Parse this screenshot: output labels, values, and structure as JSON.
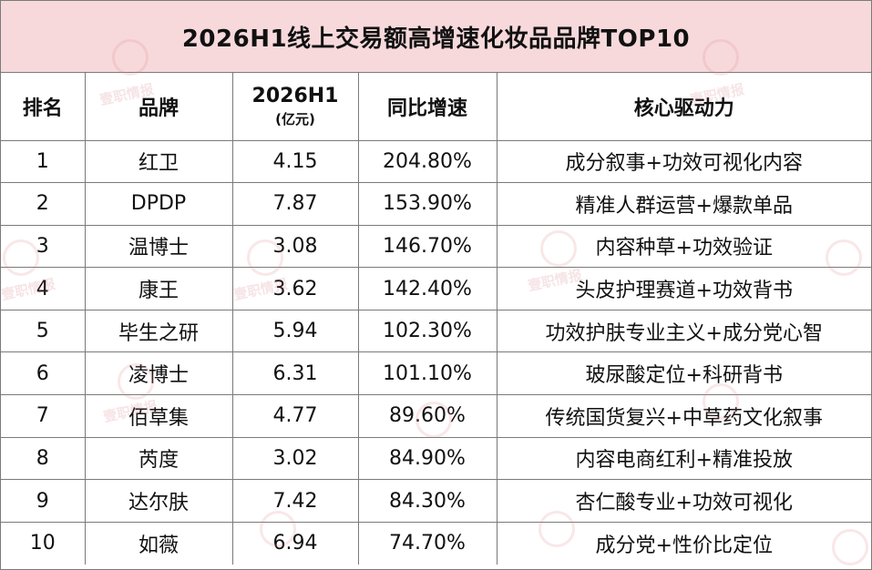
{
  "title": "2026H1线上交易额高增速化妆品品牌TOP10",
  "watermark_text": "壹职情报",
  "headers": {
    "rank": "排名",
    "brand": "品牌",
    "revenue": "2026H1",
    "revenue_unit": "(亿元)",
    "growth": "同比增速",
    "driver": "核心驱动力"
  },
  "rows": [
    {
      "rank": "1",
      "brand": "红卫",
      "revenue": "4.15",
      "growth": "204.80%",
      "driver": "成分叙事+功效可视化内容"
    },
    {
      "rank": "2",
      "brand": "DPDP",
      "revenue": "7.87",
      "growth": "153.90%",
      "driver": "精准人群运营+爆款单品"
    },
    {
      "rank": "3",
      "brand": "温博士",
      "revenue": "3.08",
      "growth": "146.70%",
      "driver": "内容种草+功效验证"
    },
    {
      "rank": "4",
      "brand": "康王",
      "revenue": "3.62",
      "growth": "142.40%",
      "driver": "头皮护理赛道+功效背书"
    },
    {
      "rank": "5",
      "brand": "毕生之研",
      "revenue": "5.94",
      "growth": "102.30%",
      "driver": "功效护肤专业主义+成分党心智"
    },
    {
      "rank": "6",
      "brand": "凌博士",
      "revenue": "6.31",
      "growth": "101.10%",
      "driver": "玻尿酸定位+科研背书"
    },
    {
      "rank": "7",
      "brand": "佰草集",
      "revenue": "4.77",
      "growth": "89.60%",
      "driver": "传统国货复兴+中草药文化叙事"
    },
    {
      "rank": "8",
      "brand": "芮度",
      "revenue": "3.02",
      "growth": "84.90%",
      "driver": "内容电商红利+精准投放"
    },
    {
      "rank": "9",
      "brand": "达尔肤",
      "revenue": "7.42",
      "growth": "84.30%",
      "driver": "杏仁酸专业+功效可视化"
    },
    {
      "rank": "10",
      "brand": "如薇",
      "revenue": "6.94",
      "growth": "74.70%",
      "driver": "成分党+性价比定位"
    }
  ]
}
